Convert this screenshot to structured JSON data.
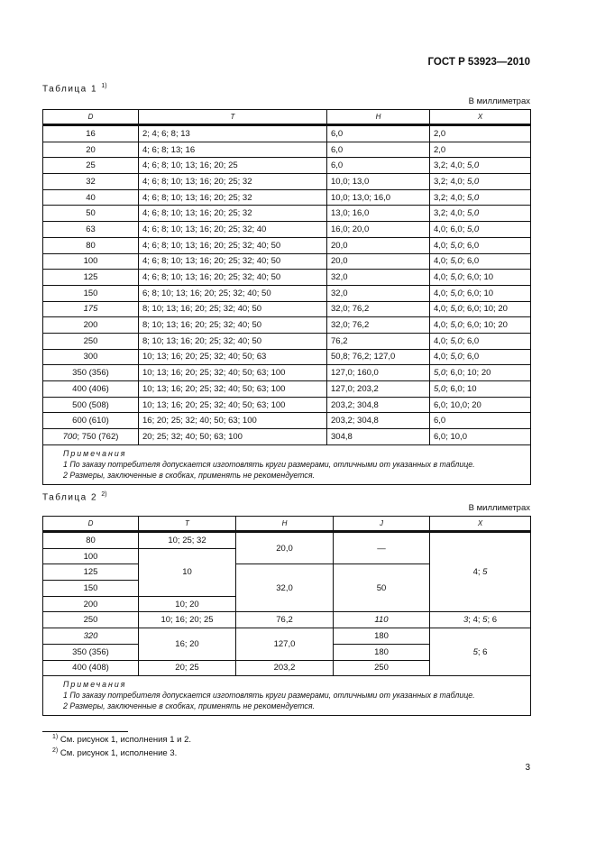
{
  "header": {
    "doc_id": "ГОСТ Р 53923—2010"
  },
  "table1": {
    "caption": "Таблица 1",
    "caption_ref": "1)",
    "units": "В миллиметрах",
    "headers": [
      "D",
      "T",
      "H",
      "X"
    ],
    "rows": [
      [
        [
          {
            "t": "16"
          }
        ],
        [
          {
            "t": "2; 4; 6; 8; 13"
          }
        ],
        [
          {
            "t": "6,0"
          }
        ],
        [
          {
            "t": "2,0"
          }
        ]
      ],
      [
        [
          {
            "t": "20"
          }
        ],
        [
          {
            "t": "4; 6; 8; 13; 16"
          }
        ],
        [
          {
            "t": "6,0"
          }
        ],
        [
          {
            "t": "2,0"
          }
        ]
      ],
      [
        [
          {
            "t": "25"
          }
        ],
        [
          {
            "t": "4; 6; 8; 10; 13; 16; 20; 25"
          }
        ],
        [
          {
            "t": "6,0"
          }
        ],
        [
          {
            "t": "3,2; 4,0; "
          },
          {
            "t": "5,0",
            "i": true
          }
        ]
      ],
      [
        [
          {
            "t": "32"
          }
        ],
        [
          {
            "t": "4; 6; 8; 10; 13; 16; 20; 25; 32"
          }
        ],
        [
          {
            "t": "10,0; 13,0"
          }
        ],
        [
          {
            "t": "3,2; 4,0; "
          },
          {
            "t": "5,0",
            "i": true
          }
        ]
      ],
      [
        [
          {
            "t": "40"
          }
        ],
        [
          {
            "t": "4; 6; 8; 10; 13; 16; 20; 25; 32"
          }
        ],
        [
          {
            "t": "10,0; 13,0; 16,0"
          }
        ],
        [
          {
            "t": "3,2; 4,0; "
          },
          {
            "t": "5,0",
            "i": true
          }
        ]
      ],
      [
        [
          {
            "t": "50"
          }
        ],
        [
          {
            "t": "4; 6; 8; 10; 13; 16; 20; 25; 32"
          }
        ],
        [
          {
            "t": "13,0; 16,0"
          }
        ],
        [
          {
            "t": "3,2; 4,0; "
          },
          {
            "t": "5,0",
            "i": true
          }
        ]
      ],
      [
        [
          {
            "t": "63"
          }
        ],
        [
          {
            "t": "4; 6; 8; 10; 13; 16; 20; 25; 32; 40"
          }
        ],
        [
          {
            "t": "16,0; 20,0"
          }
        ],
        [
          {
            "t": "4,0; 6,0; "
          },
          {
            "t": "5,0",
            "i": true
          }
        ]
      ],
      [
        [
          {
            "t": "80"
          }
        ],
        [
          {
            "t": "4; 6; 8; 10; 13; 16; 20; 25; 32; 40; 50"
          }
        ],
        [
          {
            "t": "20,0"
          }
        ],
        [
          {
            "t": "4,0; "
          },
          {
            "t": "5,0",
            "i": true
          },
          {
            "t": "; 6,0"
          }
        ]
      ],
      [
        [
          {
            "t": "100"
          }
        ],
        [
          {
            "t": "4; 6; 8; 10; 13; 16; 20; 25; 32; 40; 50"
          }
        ],
        [
          {
            "t": "20,0"
          }
        ],
        [
          {
            "t": "4,0; "
          },
          {
            "t": "5,0",
            "i": true
          },
          {
            "t": "; 6,0"
          }
        ]
      ],
      [
        [
          {
            "t": "125"
          }
        ],
        [
          {
            "t": "4; 6; 8; 10; 13; 16; 20; 25; 32; 40; 50"
          }
        ],
        [
          {
            "t": "32,0"
          }
        ],
        [
          {
            "t": "4,0; "
          },
          {
            "t": "5,0",
            "i": true
          },
          {
            "t": "; 6,0; 10"
          }
        ]
      ],
      [
        [
          {
            "t": "150"
          }
        ],
        [
          {
            "t": "6; 8; 10; 13; 16; 20; 25; 32; 40; 50"
          }
        ],
        [
          {
            "t": "32,0"
          }
        ],
        [
          {
            "t": "4,0; "
          },
          {
            "t": "5,0",
            "i": true
          },
          {
            "t": "; 6,0; 10"
          }
        ]
      ],
      [
        [
          {
            "t": "175",
            "i": true
          }
        ],
        [
          {
            "t": "8; 10; 13; 16; 20; 25; 32; 40; 50"
          }
        ],
        [
          {
            "t": "32,0; 76,2"
          }
        ],
        [
          {
            "t": "4,0; "
          },
          {
            "t": "5,0",
            "i": true
          },
          {
            "t": "; 6,0; 10; 20"
          }
        ]
      ],
      [
        [
          {
            "t": "200"
          }
        ],
        [
          {
            "t": "8; 10; 13; 16; 20; 25; 32; 40; 50"
          }
        ],
        [
          {
            "t": "32,0; 76,2"
          }
        ],
        [
          {
            "t": "4,0; "
          },
          {
            "t": "5,0",
            "i": true
          },
          {
            "t": "; 6,0; 10; 20"
          }
        ]
      ],
      [
        [
          {
            "t": "250"
          }
        ],
        [
          {
            "t": "8; 10; 13; 16; 20; 25; 32; 40; 50"
          }
        ],
        [
          {
            "t": "76,2"
          }
        ],
        [
          {
            "t": "4,0; "
          },
          {
            "t": "5,0",
            "i": true
          },
          {
            "t": "; 6,0"
          }
        ]
      ],
      [
        [
          {
            "t": "300"
          }
        ],
        [
          {
            "t": "10; 13; 16; 20; 25; 32; 40; 50; 63"
          }
        ],
        [
          {
            "t": "50,8; 76,2; 127,0"
          }
        ],
        [
          {
            "t": "4,0; "
          },
          {
            "t": "5,0",
            "i": true
          },
          {
            "t": "; 6,0"
          }
        ]
      ],
      [
        [
          {
            "t": "350 (356)"
          }
        ],
        [
          {
            "t": "10; 13; 16; 20; 25; 32; 40; 50; 63; 100"
          }
        ],
        [
          {
            "t": "127,0; 160,0"
          }
        ],
        [
          {
            "t": "5,0",
            "i": true
          },
          {
            "t": "; 6,0; 10; 20"
          }
        ]
      ],
      [
        [
          {
            "t": "400 (406)"
          }
        ],
        [
          {
            "t": "10; 13; 16; 20; 25; 32; 40; 50; 63; 100"
          }
        ],
        [
          {
            "t": "127,0; 203,2"
          }
        ],
        [
          {
            "t": "5,0",
            "i": true
          },
          {
            "t": "; 6,0; 10"
          }
        ]
      ],
      [
        [
          {
            "t": "500 (508)"
          }
        ],
        [
          {
            "t": "10; 13; 16; 20; 25; 32; 40; 50; 63; 100"
          }
        ],
        [
          {
            "t": "203,2; 304,8"
          }
        ],
        [
          {
            "t": "6,0; 10,0; 20"
          }
        ]
      ],
      [
        [
          {
            "t": "600 (610)"
          }
        ],
        [
          {
            "t": "16; 20; 25; 32; 40; 50; 63; 100"
          }
        ],
        [
          {
            "t": "203,2; 304,8"
          }
        ],
        [
          {
            "t": "6,0"
          }
        ]
      ],
      [
        [
          {
            "t": "700",
            "i": true
          },
          {
            "t": "; 750 (762)"
          }
        ],
        [
          {
            "t": "20; 25; 32; 40; 50; 63; 100"
          }
        ],
        [
          {
            "t": "304,8"
          }
        ],
        [
          {
            "t": "6,0; 10,0"
          }
        ]
      ]
    ],
    "notes": {
      "title": "Примечания",
      "items": [
        "1 По заказу потребителя допускается изготовлять круги размерами, отличными от указанных в таблице.",
        "2 Размеры, заключенные в скобках, применять не рекомендуется."
      ]
    }
  },
  "table2": {
    "caption": "Таблица 2",
    "caption_ref": "2)",
    "units": "В миллиметрах",
    "headers": [
      "D",
      "T",
      "H",
      "J",
      "X"
    ],
    "D": [
      "80",
      "100",
      "125",
      "150",
      "200",
      "250",
      "320",
      "350 (356)",
      "400 (408)"
    ],
    "T": [
      "10; 25; 32",
      "10",
      "10; 20",
      "10; 16; 20; 25",
      "16; 20",
      "20; 25"
    ],
    "H": [
      "20,0",
      "32,0",
      "76,2",
      "127,0",
      "203,2"
    ],
    "J": [
      "—",
      "50",
      "110",
      "180",
      "180",
      "250"
    ],
    "X": {
      "a": "4; ",
      "a_i": "5",
      "b1_i": "3",
      "b2": "; 4; ",
      "b3_i": "5",
      "b4": "; 6",
      "c_i": "5",
      "c2": "; 6"
    },
    "notes": {
      "title": "Примечания",
      "items": [
        "1 По заказу потребителя допускается изготовлять круги размерами, отличными от указанных в таблице.",
        "2 Размеры, заключенные в скобках, применять не рекомендуется."
      ]
    }
  },
  "footnotes": [
    {
      "ref": "1)",
      "text": " См. рисунок 1, исполнения 1 и 2."
    },
    {
      "ref": "2)",
      "text": " См. рисунок 1, исполнение 3."
    }
  ],
  "page_number": "3"
}
